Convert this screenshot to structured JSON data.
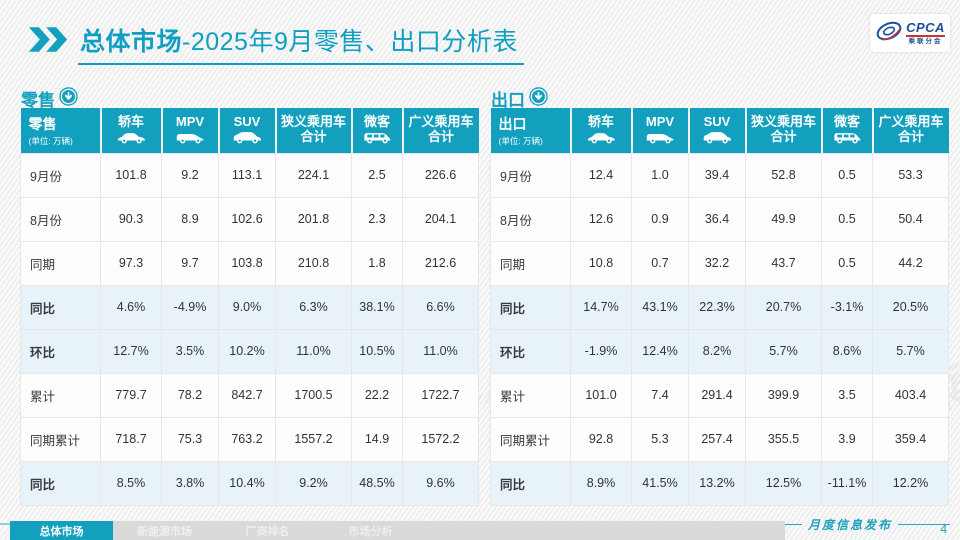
{
  "header": {
    "title_bold": "总体市场",
    "title_rest": "-2025年9月零售、出口分析表",
    "logo": {
      "text": "CPCA",
      "subtext": "乘联分会"
    }
  },
  "watermark_text": "CPCA 乘联分会",
  "colors": {
    "accent_teal": "#12a0be",
    "percent_text": "#1ba4c6",
    "highlight_row_bg": "#e7f3f8",
    "logo_blue": "#1b4f9c",
    "logo_red": "#d0312d"
  },
  "tables": [
    {
      "name": "retail",
      "section_label": "零售",
      "corner_label": "零售",
      "unit_label": "(单位: 万辆)",
      "columns": [
        {
          "key": "sedan",
          "label": "轿车",
          "icon": "sedan-icon"
        },
        {
          "key": "mpv",
          "label": "MPV",
          "icon": "mpv-icon"
        },
        {
          "key": "suv",
          "label": "SUV",
          "icon": "suv-icon"
        },
        {
          "key": "narrow-pv-total",
          "label": "狭义乘用车",
          "label2": "合计"
        },
        {
          "key": "microvan",
          "label": "微客",
          "icon": "microvan-icon"
        },
        {
          "key": "broad-pv-total",
          "label": "广义乘用车",
          "label2": "合计"
        }
      ],
      "rows": [
        {
          "label": "9月份",
          "type": "normal",
          "values": [
            "101.8",
            "9.2",
            "113.1",
            "224.1",
            "2.5",
            "226.6"
          ]
        },
        {
          "label": "8月份",
          "type": "normal",
          "values": [
            "90.3",
            "8.9",
            "102.6",
            "201.8",
            "2.3",
            "204.1"
          ]
        },
        {
          "label": "同期",
          "type": "normal",
          "values": [
            "97.3",
            "9.7",
            "103.8",
            "210.8",
            "1.8",
            "212.6"
          ]
        },
        {
          "label": "同比",
          "type": "percent",
          "values": [
            "4.6%",
            "-4.9%",
            "9.0%",
            "6.3%",
            "38.1%",
            "6.6%"
          ]
        },
        {
          "label": "环比",
          "type": "percent",
          "values": [
            "12.7%",
            "3.5%",
            "10.2%",
            "11.0%",
            "10.5%",
            "11.0%"
          ]
        },
        {
          "label": "累计",
          "type": "normal",
          "values": [
            "779.7",
            "78.2",
            "842.7",
            "1700.5",
            "22.2",
            "1722.7"
          ]
        },
        {
          "label": "同期累计",
          "type": "normal",
          "values": [
            "718.7",
            "75.3",
            "763.2",
            "1557.2",
            "14.9",
            "1572.2"
          ]
        },
        {
          "label": "同比",
          "type": "percent",
          "values": [
            "8.5%",
            "3.8%",
            "10.4%",
            "9.2%",
            "48.5%",
            "9.6%"
          ]
        }
      ]
    },
    {
      "name": "export",
      "section_label": "出口",
      "corner_label": "出口",
      "unit_label": "(单位: 万辆)",
      "columns": [
        {
          "key": "sedan",
          "label": "轿车",
          "icon": "sedan-icon"
        },
        {
          "key": "mpv",
          "label": "MPV",
          "icon": "mpv-icon"
        },
        {
          "key": "suv",
          "label": "SUV",
          "icon": "suv-icon"
        },
        {
          "key": "narrow-pv-total",
          "label": "狭义乘用车",
          "label2": "合计"
        },
        {
          "key": "microvan",
          "label": "微客",
          "icon": "microvan-icon"
        },
        {
          "key": "broad-pv-total",
          "label": "广义乘用车",
          "label2": "合计"
        }
      ],
      "rows": [
        {
          "label": "9月份",
          "type": "normal",
          "values": [
            "12.4",
            "1.0",
            "39.4",
            "52.8",
            "0.5",
            "53.3"
          ]
        },
        {
          "label": "8月份",
          "type": "normal",
          "values": [
            "12.6",
            "0.9",
            "36.4",
            "49.9",
            "0.5",
            "50.4"
          ]
        },
        {
          "label": "同期",
          "type": "normal",
          "values": [
            "10.8",
            "0.7",
            "32.2",
            "43.7",
            "0.5",
            "44.2"
          ]
        },
        {
          "label": "同比",
          "type": "percent",
          "values": [
            "14.7%",
            "43.1%",
            "22.3%",
            "20.7%",
            "-3.1%",
            "20.5%"
          ]
        },
        {
          "label": "环比",
          "type": "percent",
          "values": [
            "-1.9%",
            "12.4%",
            "8.2%",
            "5.7%",
            "8.6%",
            "5.7%"
          ]
        },
        {
          "label": "累计",
          "type": "normal",
          "values": [
            "101.0",
            "7.4",
            "291.4",
            "399.9",
            "3.5",
            "403.4"
          ]
        },
        {
          "label": "同期累计",
          "type": "normal",
          "values": [
            "92.8",
            "5.3",
            "257.4",
            "355.5",
            "3.9",
            "359.4"
          ]
        },
        {
          "label": "同比",
          "type": "percent",
          "values": [
            "8.9%",
            "41.5%",
            "13.2%",
            "12.5%",
            "-11.1%",
            "12.2%"
          ]
        }
      ]
    }
  ],
  "footer": {
    "tabs": [
      {
        "label": "总体市场",
        "active": true
      },
      {
        "label": "新能源市场",
        "active": false
      },
      {
        "label": "厂商排名",
        "active": false
      },
      {
        "label": "市场分析",
        "active": false
      }
    ],
    "publish_label": "月度信息发布",
    "page_number": "4"
  }
}
